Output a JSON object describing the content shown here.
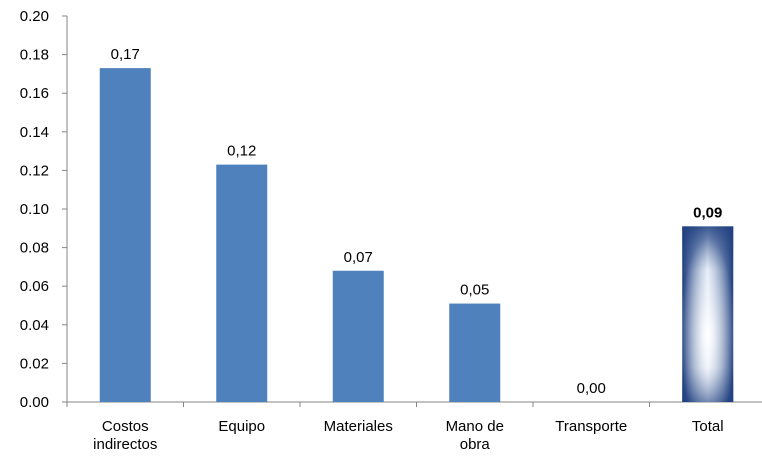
{
  "chart_data": {
    "type": "bar",
    "categories": [
      [
        "Costos",
        "indirectos"
      ],
      [
        "Equipo"
      ],
      [
        "Materiales"
      ],
      [
        "Mano de",
        "obra"
      ],
      [
        "Transporte"
      ],
      [
        "Total"
      ]
    ],
    "values": [
      0.173,
      0.123,
      0.068,
      0.051,
      0.0,
      0.091
    ],
    "data_labels": [
      "0,17",
      "0,12",
      "0,07",
      "0,05",
      "0,00",
      "0,09"
    ],
    "y_ticks": [
      "0.00",
      "0.02",
      "0.04",
      "0.06",
      "0.08",
      "0.10",
      "0.12",
      "0.14",
      "0.16",
      "0.18",
      "0.20"
    ],
    "ylim": [
      0,
      0.2
    ],
    "title": "",
    "xlabel": "",
    "ylabel": "",
    "grid": false,
    "legend": "none",
    "colors": {
      "bar": "#4F81BD",
      "total_dark": "#1F3F7F",
      "total_light": "#FFFFFF",
      "axis": "#868686"
    }
  }
}
